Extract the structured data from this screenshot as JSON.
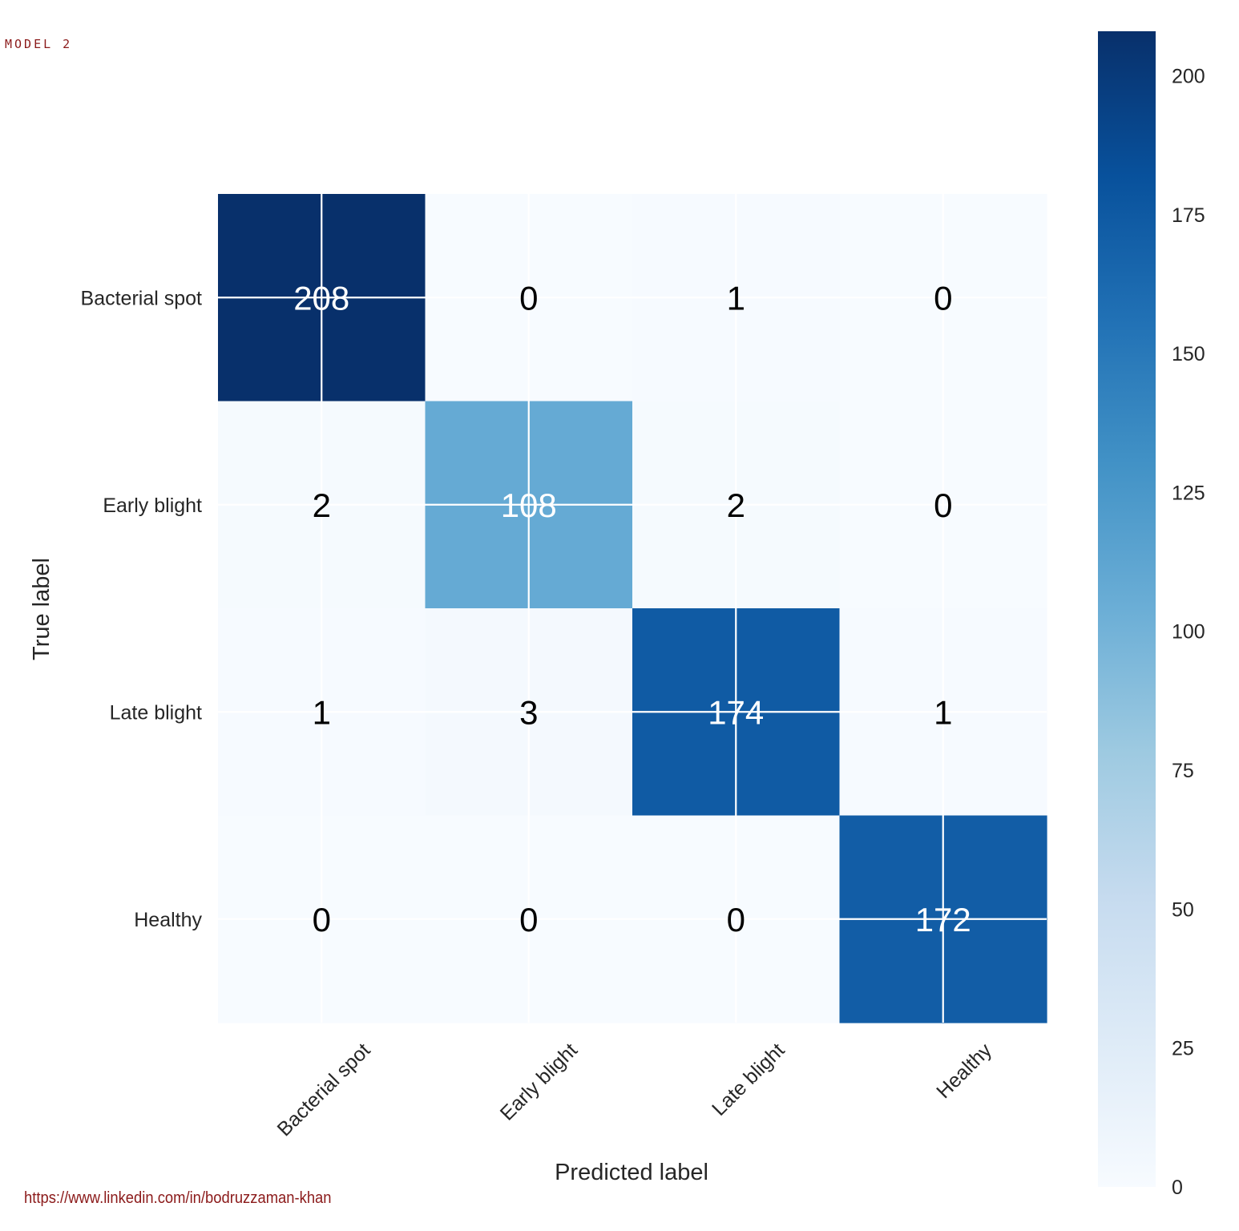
{
  "annotation": "MODEL 2",
  "footer_link": "https://www.linkedin.com/in/bodruzzaman-khan",
  "chart_data": {
    "type": "heatmap",
    "title": "",
    "xlabel": "Predicted label",
    "ylabel": "True label",
    "x_categories": [
      "Bacterial spot",
      "Early blight",
      "Late blight",
      "Healthy"
    ],
    "y_categories": [
      "Bacterial spot",
      "Early blight",
      "Late blight",
      "Healthy"
    ],
    "matrix": [
      [
        208,
        0,
        1,
        0
      ],
      [
        2,
        108,
        2,
        0
      ],
      [
        1,
        3,
        174,
        1
      ],
      [
        0,
        0,
        0,
        172
      ]
    ],
    "colormap": "Blues",
    "colorbar": {
      "range": [
        0,
        208
      ],
      "ticks": [
        0,
        25,
        50,
        75,
        100,
        125,
        150,
        175,
        200
      ]
    },
    "grid": true,
    "text_color_dark": "#000000",
    "text_color_light": "#ffffff"
  }
}
